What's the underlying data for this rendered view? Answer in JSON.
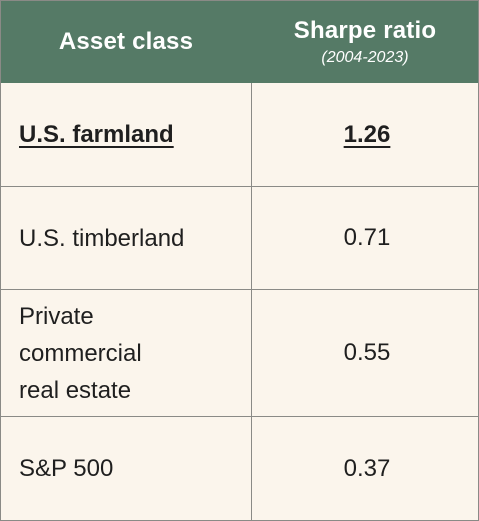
{
  "header": {
    "asset_class": "Asset class",
    "sharpe_ratio": "Sharpe ratio",
    "period": "(2004-2023)"
  },
  "rows": [
    {
      "asset": "U.S. farmland",
      "ratio": "1.26",
      "highlighted": true
    },
    {
      "asset": "U.S. timberland",
      "ratio": "0.71"
    },
    {
      "asset_lines": [
        "Private",
        "commercial",
        "real estate"
      ],
      "ratio": "0.55"
    },
    {
      "asset": "S&P 500",
      "ratio": "0.37"
    }
  ],
  "colors": {
    "header_bg": "#557a66",
    "body_bg": "#fbf5ec",
    "border": "#8a8a86"
  }
}
